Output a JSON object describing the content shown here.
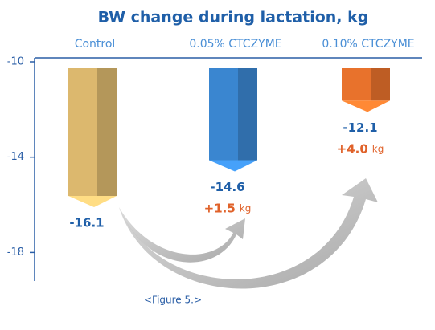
{
  "chart_data": {
    "type": "bar3d",
    "title": "BW change during lactation, kg",
    "categories": [
      "Control",
      "0.05% CTCZYME",
      "0.10% CTCZYME"
    ],
    "values": [
      -16.1,
      -14.6,
      -12.1
    ],
    "colors": [
      "#dcb86e",
      "#3a86d0",
      "#e8722c"
    ],
    "annotations": [
      null,
      {
        "text": "+1.5",
        "unit": "kg"
      },
      {
        "text": "+4.0",
        "unit": "kg"
      }
    ],
    "ylim": [
      -19.2,
      -10
    ],
    "yticks": [
      -10,
      -14,
      -18
    ],
    "caption": "<Figure 5.>"
  }
}
